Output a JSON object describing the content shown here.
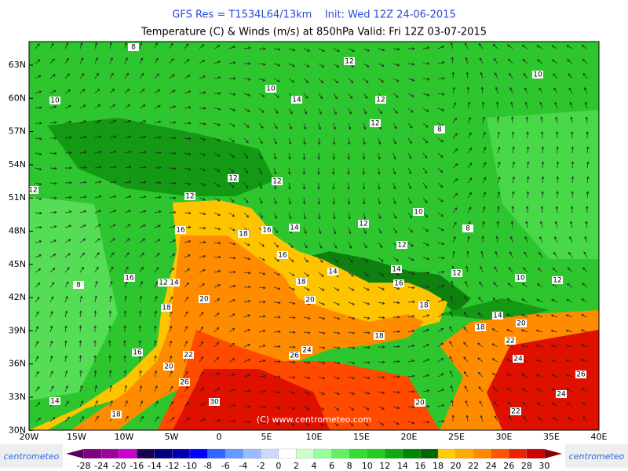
{
  "header": {
    "line1": "GFS Res = T1534L64/13km    Init: Wed 12Z 24-06-2015",
    "line2": "Temperature (C) & Winds (m/s) at 850hPa  Valid: Fri 12Z 03-07-2015"
  },
  "axes": {
    "lat_labels": [
      "63N",
      "60N",
      "57N",
      "54N",
      "51N",
      "48N",
      "45N",
      "42N",
      "39N",
      "36N",
      "33N",
      "30N"
    ],
    "lon_labels": [
      "20W",
      "15W",
      "10W",
      "5W",
      "0",
      "5E",
      "10E",
      "15E",
      "20E",
      "25E",
      "30E",
      "35E",
      "40E"
    ]
  },
  "watermark": "(C) www.centrometeo.com",
  "logos": [
    "centrometeo",
    "centrometeo"
  ],
  "contour_labels": [
    "8",
    "12",
    "10",
    "10",
    "10",
    "14",
    "12",
    "12",
    "8",
    "12",
    "12",
    "12",
    "12",
    "10",
    "8",
    "16",
    "18",
    "16",
    "14",
    "12",
    "12",
    "16",
    "14",
    "14",
    "12",
    "10",
    "12",
    "8",
    "16",
    "12",
    "14",
    "20",
    "18",
    "16",
    "20",
    "18",
    "18",
    "14",
    "18",
    "20",
    "18",
    "22",
    "16",
    "22",
    "24",
    "26",
    "20",
    "24",
    "26",
    "26",
    "24",
    "14",
    "20",
    "22",
    "18",
    "30"
  ],
  "legend": {
    "labels": [
      "-28",
      "-24",
      "-20",
      "-16",
      "-14",
      "-12",
      "-10",
      "-8",
      "-6",
      "-4",
      "-2",
      "0",
      "2",
      "4",
      "6",
      "8",
      "10",
      "12",
      "14",
      "16",
      "18",
      "20",
      "22",
      "24",
      "26",
      "28",
      "30"
    ],
    "colors": [
      "#5a005a",
      "#800080",
      "#a000a0",
      "#cc00cc",
      "#1a0050",
      "#000080",
      "#0000b0",
      "#0000ff",
      "#3366ff",
      "#6699ff",
      "#99bbff",
      "#ccd9ff",
      "#ffffff",
      "#ccffcc",
      "#99ff99",
      "#66ee66",
      "#33dd33",
      "#22cc22",
      "#11aa11",
      "#008800",
      "#006600",
      "#ffcc00",
      "#ffaa00",
      "#ff8800",
      "#ff5500",
      "#ee2200",
      "#cc0000",
      "#880000"
    ]
  }
}
